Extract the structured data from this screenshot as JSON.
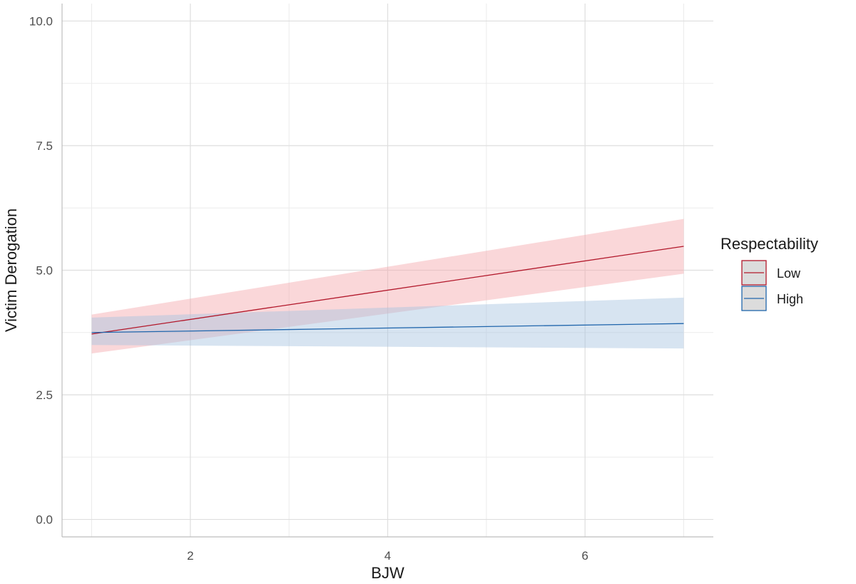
{
  "chart_data": {
    "type": "line",
    "xlabel": "BJW",
    "ylabel": "Victim Derogation",
    "xlim": [
      0.7,
      7.3
    ],
    "ylim": [
      -0.35,
      10.35
    ],
    "x_ticks": [
      2,
      4,
      6
    ],
    "x_tick_labels": [
      "2",
      "4",
      "6"
    ],
    "x_minor_ticks": [
      1,
      3,
      5,
      7
    ],
    "y_ticks": [
      0,
      2.5,
      5,
      7.5,
      10
    ],
    "y_tick_labels": [
      "0.0",
      "2.5",
      "5.0",
      "7.5",
      "10.0"
    ],
    "y_minor_ticks": [
      1.25,
      3.75,
      6.25,
      8.75
    ],
    "grid": true,
    "legend": {
      "title": "Respectability",
      "position": "right"
    },
    "series": [
      {
        "name": "Low",
        "color": "#b2182b",
        "fill": "#f4a6aa",
        "x": [
          1,
          7
        ],
        "y": [
          3.72,
          5.48
        ],
        "lower": [
          3.33,
          4.93
        ],
        "upper": [
          4.11,
          6.03
        ]
      },
      {
        "name": "High",
        "color": "#2166ac",
        "fill": "#a6c4e0",
        "x": [
          1,
          7
        ],
        "y": [
          3.75,
          3.93
        ],
        "lower": [
          3.5,
          3.43
        ],
        "upper": [
          4.05,
          4.45
        ]
      }
    ]
  }
}
